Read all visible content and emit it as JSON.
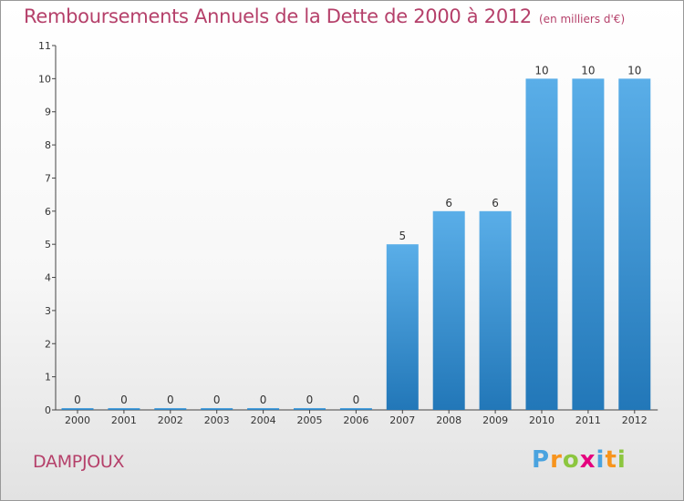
{
  "title": "Remboursements Annuels de la Dette de 2000 à 2012",
  "unit_note": "(en milliers d'€)",
  "commune": "DAMPJOUX",
  "logo": {
    "letters": [
      "P",
      "r",
      "o",
      "x",
      "i",
      "t",
      "i"
    ],
    "colors": [
      "#4aa3df",
      "#f7941d",
      "#8cc63f",
      "#e5007e",
      "#4aa3df",
      "#f7941d",
      "#8cc63f"
    ]
  },
  "colors": {
    "title": "#b5406a",
    "bar_top": "#5aaee8",
    "bar_bottom": "#2277b8",
    "axis": "#444444"
  },
  "chart_data": {
    "type": "bar",
    "categories": [
      "2000",
      "2001",
      "2002",
      "2003",
      "2004",
      "2005",
      "2006",
      "2007",
      "2008",
      "2009",
      "2010",
      "2011",
      "2012"
    ],
    "values": [
      0,
      0,
      0,
      0,
      0,
      0,
      0,
      5,
      6,
      6,
      10,
      10,
      10
    ],
    "value_labels": [
      "0",
      "0",
      "0",
      "0",
      "0",
      "0",
      "0",
      "5",
      "6",
      "6",
      "10",
      "10",
      "10"
    ],
    "y_ticks": [
      "0",
      "1",
      "2",
      "3",
      "4",
      "5",
      "6",
      "7",
      "8",
      "9",
      "10",
      "11"
    ],
    "ylim": [
      0,
      11
    ],
    "grid": false,
    "legend": "none",
    "xlabel": "",
    "ylabel": ""
  }
}
